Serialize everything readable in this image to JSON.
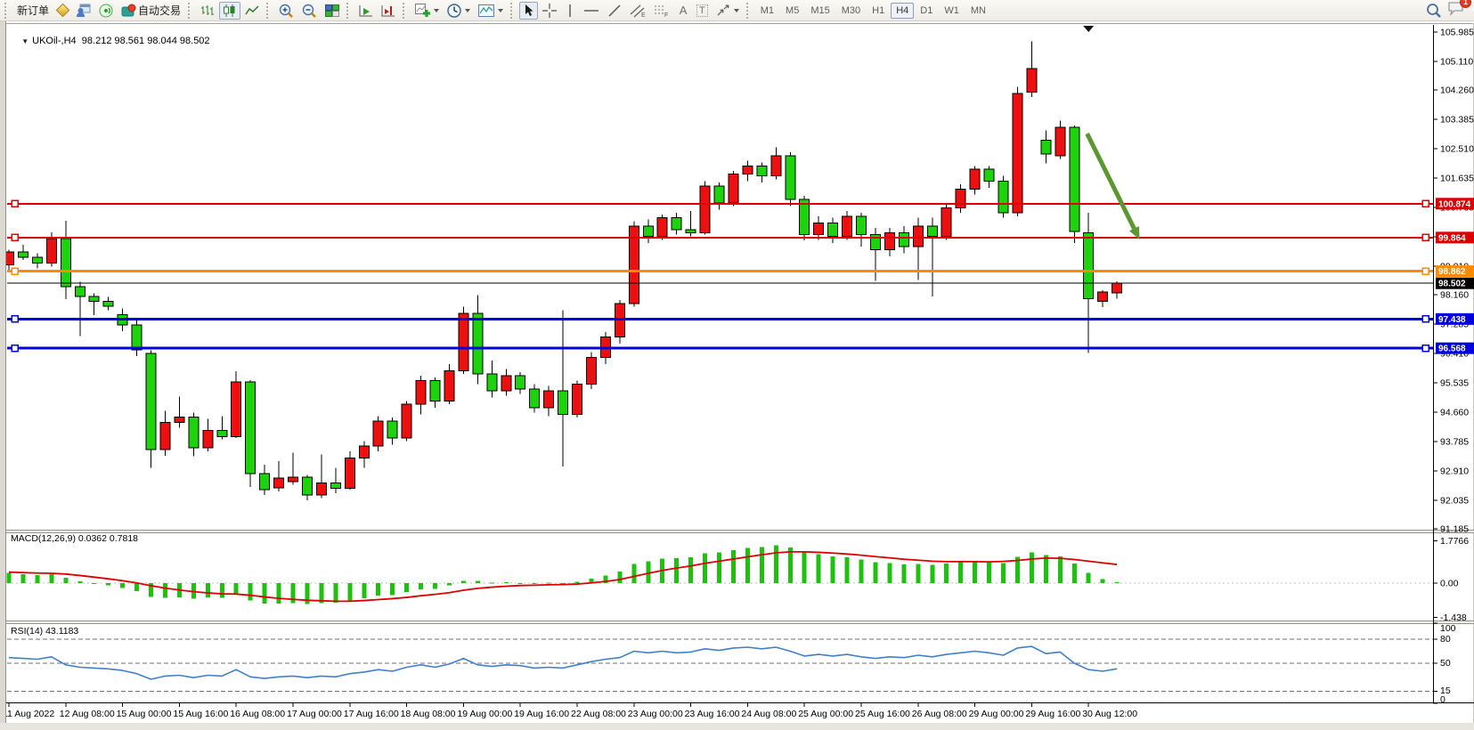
{
  "window": {
    "toolbar": {
      "new_order_label": "新订单",
      "autotrading_label": "自动交易",
      "periods": [
        "M1",
        "M5",
        "M15",
        "M30",
        "H1",
        "H4",
        "D1",
        "W1",
        "MN"
      ],
      "active_period": "H4",
      "notifications": "1",
      "icons": {
        "text_tool": "A",
        "label_tool": "T",
        "channel_suffix": "E",
        "fibo_suffix": "F"
      }
    }
  },
  "chart": {
    "title": {
      "symbol_period": "UKOil-,H4",
      "ohlc_text": "98.212 98.561 98.044 98.502"
    },
    "macd_label": "MACD(12,26,9) 0.0362 0.7818",
    "rsi_label": "RSI(14) 43.1183",
    "price_ticks": [
      "105.985",
      "105.110",
      "104.260",
      "103.385",
      "102.510",
      "101.635",
      "100.760",
      "99.885",
      "99.010",
      "98.160",
      "97.285",
      "96.410",
      "95.535",
      "94.660",
      "93.785",
      "92.910",
      "92.035",
      "91.185"
    ],
    "macd_ticks": [
      {
        "label": "1.7766",
        "value": 1.7766
      },
      {
        "label": "0.00",
        "value": 0
      },
      {
        "label": "-1.438",
        "value": -1.438
      }
    ],
    "rsi_ticks": [
      {
        "label": "100",
        "value": 100
      },
      {
        "label": "80",
        "value": 80
      },
      {
        "label": "50",
        "value": 50
      },
      {
        "label": "15",
        "value": 15
      },
      {
        "label": "0",
        "value": 0
      }
    ],
    "rsi_level_lines": [
      80,
      50,
      15
    ],
    "time_labels": [
      "11 Aug 2022",
      "12 Aug 08:00",
      "15 Aug 00:00",
      "15 Aug 16:00",
      "16 Aug 08:00",
      "17 Aug 00:00",
      "17 Aug 16:00",
      "18 Aug 08:00",
      "19 Aug 00:00",
      "19 Aug 16:00",
      "22 Aug 08:00",
      "23 Aug 00:00",
      "23 Aug 16:00",
      "24 Aug 08:00",
      "25 Aug 00:00",
      "25 Aug 16:00",
      "26 Aug 08:00",
      "29 Aug 00:00",
      "29 Aug 16:00",
      "30 Aug 12:00"
    ],
    "levels": [
      {
        "label": "100.874",
        "price": 100.874,
        "color": "#dd0000",
        "thickness": 2
      },
      {
        "label": "99.864",
        "price": 99.864,
        "color": "#dd0000",
        "thickness": 2
      },
      {
        "label": "98.862",
        "price": 98.862,
        "color": "#ff8a00",
        "thickness": 3
      },
      {
        "label": "97.438",
        "price": 97.438,
        "color": "#0000dd",
        "thickness": 3
      },
      {
        "label": "96.568",
        "price": 96.568,
        "color": "#0000dd",
        "thickness": 3
      }
    ],
    "bid_line": {
      "label": "98.502",
      "price": 98.502,
      "color": "#000000"
    },
    "annotation_arrow": {
      "color": "#5d9732",
      "start_bar": 75.9,
      "start_price": 102.96,
      "end_bar": 79.6,
      "end_price": 99.8
    },
    "shift_marker_bar": 76
  },
  "chart_data": {
    "type": "candlestick",
    "symbol": "UKOil-",
    "timeframe": "H4",
    "up_color": "#ee1010",
    "down_color": "#1ed30e",
    "price_range": [
      91.185,
      105.985
    ],
    "ohlc": [
      [
        99.05,
        99.5,
        98.9,
        99.43
      ],
      [
        99.43,
        99.65,
        99.2,
        99.28
      ],
      [
        99.28,
        99.4,
        98.95,
        99.1
      ],
      [
        99.1,
        100.02,
        99.0,
        99.84
      ],
      [
        99.84,
        100.37,
        98.03,
        98.4
      ],
      [
        98.4,
        98.55,
        96.93,
        98.11
      ],
      [
        98.11,
        98.2,
        97.55,
        97.97
      ],
      [
        97.97,
        98.1,
        97.7,
        97.82
      ],
      [
        97.56,
        97.75,
        97.08,
        97.26
      ],
      [
        97.26,
        97.4,
        96.33,
        96.52
      ],
      [
        96.41,
        96.5,
        93.0,
        93.55
      ],
      [
        93.55,
        94.7,
        93.36,
        94.36
      ],
      [
        94.36,
        95.13,
        94.2,
        94.52
      ],
      [
        94.52,
        94.65,
        93.35,
        93.6
      ],
      [
        93.6,
        94.47,
        93.5,
        94.12
      ],
      [
        94.12,
        94.55,
        93.85,
        93.94
      ],
      [
        93.94,
        95.88,
        93.9,
        95.56
      ],
      [
        95.56,
        95.62,
        92.43,
        92.83
      ],
      [
        92.83,
        93.1,
        92.2,
        92.35
      ],
      [
        92.41,
        93.2,
        92.3,
        92.7
      ],
      [
        92.6,
        93.45,
        92.5,
        92.73
      ],
      [
        92.73,
        92.8,
        92.04,
        92.2
      ],
      [
        92.2,
        93.4,
        92.1,
        92.55
      ],
      [
        92.55,
        93.0,
        92.25,
        92.4
      ],
      [
        92.4,
        93.5,
        92.35,
        93.3
      ],
      [
        93.3,
        93.8,
        93.0,
        93.65
      ],
      [
        93.65,
        94.55,
        93.5,
        94.4
      ],
      [
        94.4,
        94.5,
        93.7,
        93.9
      ],
      [
        93.9,
        95.0,
        93.8,
        94.9
      ],
      [
        94.9,
        95.75,
        94.6,
        95.6
      ],
      [
        95.6,
        95.7,
        94.8,
        95.0
      ],
      [
        95.0,
        96.1,
        94.9,
        95.9
      ],
      [
        95.9,
        97.8,
        95.8,
        97.6
      ],
      [
        97.6,
        98.15,
        95.5,
        95.8
      ],
      [
        95.8,
        96.2,
        95.1,
        95.3
      ],
      [
        95.3,
        95.95,
        95.15,
        95.75
      ],
      [
        95.75,
        95.85,
        95.2,
        95.35
      ],
      [
        95.35,
        95.5,
        94.65,
        94.8
      ],
      [
        94.8,
        95.45,
        94.55,
        95.3
      ],
      [
        95.3,
        97.7,
        93.05,
        94.6
      ],
      [
        94.6,
        95.6,
        94.5,
        95.5
      ],
      [
        95.5,
        96.45,
        95.35,
        96.3
      ],
      [
        96.3,
        97.05,
        96.1,
        96.9
      ],
      [
        96.9,
        98.0,
        96.7,
        97.9
      ],
      [
        97.9,
        100.35,
        97.8,
        100.2
      ],
      [
        100.2,
        100.4,
        99.7,
        99.9
      ],
      [
        99.9,
        100.55,
        99.8,
        100.45
      ],
      [
        100.45,
        100.6,
        99.95,
        100.1
      ],
      [
        100.1,
        100.65,
        99.9,
        100.0
      ],
      [
        100.0,
        101.55,
        99.95,
        101.4
      ],
      [
        101.4,
        101.5,
        100.7,
        100.9
      ],
      [
        100.9,
        101.85,
        100.8,
        101.75
      ],
      [
        101.75,
        102.15,
        101.55,
        102.0
      ],
      [
        102.0,
        102.1,
        101.5,
        101.7
      ],
      [
        101.7,
        102.55,
        101.6,
        102.3
      ],
      [
        102.3,
        102.4,
        100.8,
        101.0
      ],
      [
        101.0,
        101.1,
        99.78,
        99.95
      ],
      [
        99.95,
        100.5,
        99.8,
        100.3
      ],
      [
        100.3,
        100.45,
        99.7,
        99.9
      ],
      [
        99.9,
        100.65,
        99.8,
        100.5
      ],
      [
        100.5,
        100.6,
        99.6,
        99.95
      ],
      [
        99.95,
        100.15,
        98.58,
        99.5
      ],
      [
        99.5,
        100.15,
        99.3,
        100.0
      ],
      [
        100.0,
        100.2,
        99.4,
        99.6
      ],
      [
        99.6,
        100.45,
        98.6,
        100.2
      ],
      [
        100.2,
        100.45,
        98.11,
        99.9
      ],
      [
        99.9,
        100.9,
        99.8,
        100.75
      ],
      [
        100.75,
        101.45,
        100.6,
        101.3
      ],
      [
        101.3,
        102.0,
        101.15,
        101.9
      ],
      [
        101.9,
        102.0,
        101.35,
        101.55
      ],
      [
        101.55,
        101.7,
        100.45,
        100.6
      ],
      [
        100.6,
        104.35,
        100.5,
        104.15
      ],
      [
        104.2,
        105.7,
        104.05,
        104.9
      ],
      [
        102.77,
        103.05,
        102.08,
        102.35
      ],
      [
        102.3,
        103.35,
        102.2,
        103.15
      ],
      [
        103.15,
        103.2,
        99.7,
        100.04
      ],
      [
        100.0,
        100.6,
        96.42,
        98.05
      ],
      [
        97.97,
        98.3,
        97.79,
        98.24
      ],
      [
        98.212,
        98.561,
        98.044,
        98.502
      ]
    ],
    "macd": {
      "histogram_color": "#1ec20e",
      "signal_color": "#dd0000",
      "range": [
        -1.438,
        1.7766
      ],
      "histogram": [
        0.42,
        0.38,
        0.34,
        0.38,
        0.22,
        0.08,
        -0.02,
        -0.1,
        -0.2,
        -0.34,
        -0.58,
        -0.62,
        -0.6,
        -0.66,
        -0.6,
        -0.62,
        -0.48,
        -0.72,
        -0.85,
        -0.86,
        -0.84,
        -0.88,
        -0.84,
        -0.82,
        -0.74,
        -0.64,
        -0.52,
        -0.5,
        -0.38,
        -0.26,
        -0.24,
        -0.1,
        0.1,
        0.1,
        0.02,
        0.04,
        0.0,
        -0.04,
        0.02,
        -0.02,
        0.06,
        0.18,
        0.32,
        0.48,
        0.8,
        0.92,
        1.02,
        1.05,
        1.08,
        1.25,
        1.28,
        1.38,
        1.48,
        1.52,
        1.58,
        1.5,
        1.32,
        1.22,
        1.12,
        1.08,
        0.98,
        0.88,
        0.84,
        0.78,
        0.8,
        0.76,
        0.82,
        0.88,
        0.92,
        0.9,
        0.84,
        1.1,
        1.28,
        1.18,
        1.12,
        0.82,
        0.42,
        0.16,
        0.0362
      ],
      "signal": [
        0.46,
        0.44,
        0.42,
        0.41,
        0.38,
        0.32,
        0.25,
        0.18,
        0.1,
        0.01,
        -0.11,
        -0.21,
        -0.29,
        -0.36,
        -0.41,
        -0.45,
        -0.46,
        -0.51,
        -0.58,
        -0.64,
        -0.68,
        -0.72,
        -0.74,
        -0.76,
        -0.76,
        -0.73,
        -0.69,
        -0.65,
        -0.6,
        -0.53,
        -0.47,
        -0.4,
        -0.3,
        -0.22,
        -0.17,
        -0.13,
        -0.1,
        -0.09,
        -0.07,
        -0.06,
        -0.04,
        0.01,
        0.07,
        0.15,
        0.28,
        0.41,
        0.53,
        0.63,
        0.72,
        0.83,
        0.92,
        1.01,
        1.1,
        1.19,
        1.27,
        1.31,
        1.31,
        1.29,
        1.26,
        1.22,
        1.17,
        1.11,
        1.06,
        1.0,
        0.96,
        0.92,
        0.9,
        0.9,
        0.9,
        0.89,
        0.91,
        0.95,
        1.01,
        1.05,
        1.04,
        0.99,
        0.92,
        0.85,
        0.7818
      ]
    },
    "rsi": {
      "line_color": "#4180c8",
      "range": [
        0,
        100
      ],
      "values": [
        57,
        56,
        55,
        58,
        48,
        45,
        44,
        43,
        41,
        37,
        30,
        34,
        35,
        32,
        35,
        34,
        42,
        33,
        31,
        33,
        34,
        32,
        34,
        33,
        37,
        39,
        42,
        40,
        45,
        48,
        45,
        49,
        56,
        48,
        46,
        48,
        47,
        44,
        45,
        44,
        48,
        52,
        55,
        57,
        65,
        63,
        65,
        63,
        64,
        68,
        66,
        69,
        70,
        68,
        70,
        65,
        59,
        61,
        59,
        61,
        58,
        56,
        58,
        57,
        60,
        58,
        61,
        63,
        65,
        63,
        60,
        69,
        71,
        62,
        64,
        50,
        42,
        40,
        43.1
      ]
    }
  }
}
